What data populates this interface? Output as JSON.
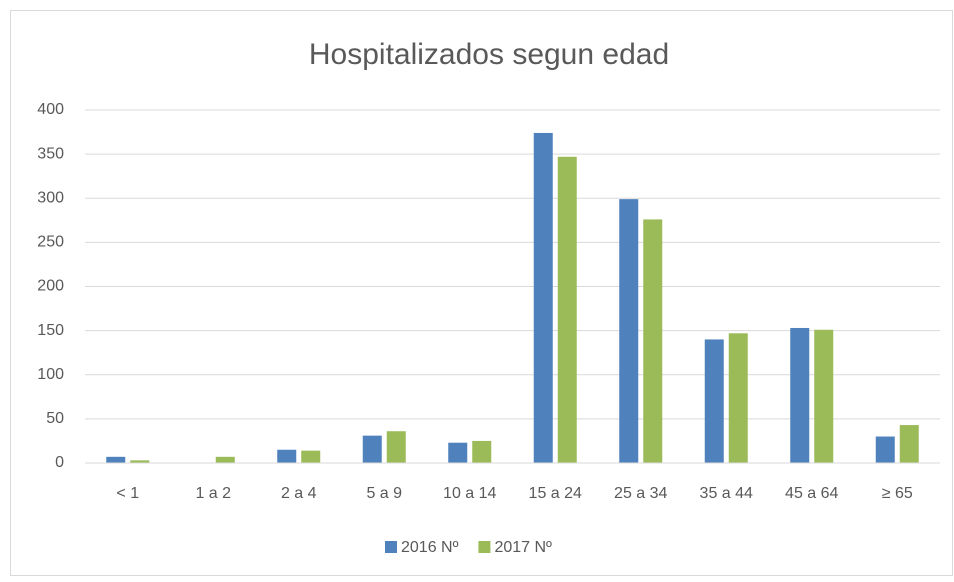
{
  "chart_data": {
    "type": "bar",
    "title": "Hospitalizados segun edad",
    "categories": [
      "< 1",
      "1 a 2",
      "2 a 4",
      "5 a 9",
      "10 a 14",
      "15 a 24",
      "25 a 34",
      "35 a 44",
      "45 a 64",
      "≥ 65"
    ],
    "series": [
      {
        "name": "2016 Nº",
        "color": "#4f81bd",
        "values": [
          7,
          0,
          15,
          31,
          23,
          374,
          299,
          140,
          153,
          30
        ]
      },
      {
        "name": "2017 Nº",
        "color": "#9bbb59",
        "values": [
          3,
          7,
          14,
          36,
          25,
          347,
          276,
          147,
          151,
          43
        ]
      }
    ],
    "ylim": [
      0,
      400
    ],
    "yticks": [
      0,
      50,
      100,
      150,
      200,
      250,
      300,
      350,
      400
    ],
    "grid": true,
    "legend": "bottom"
  }
}
